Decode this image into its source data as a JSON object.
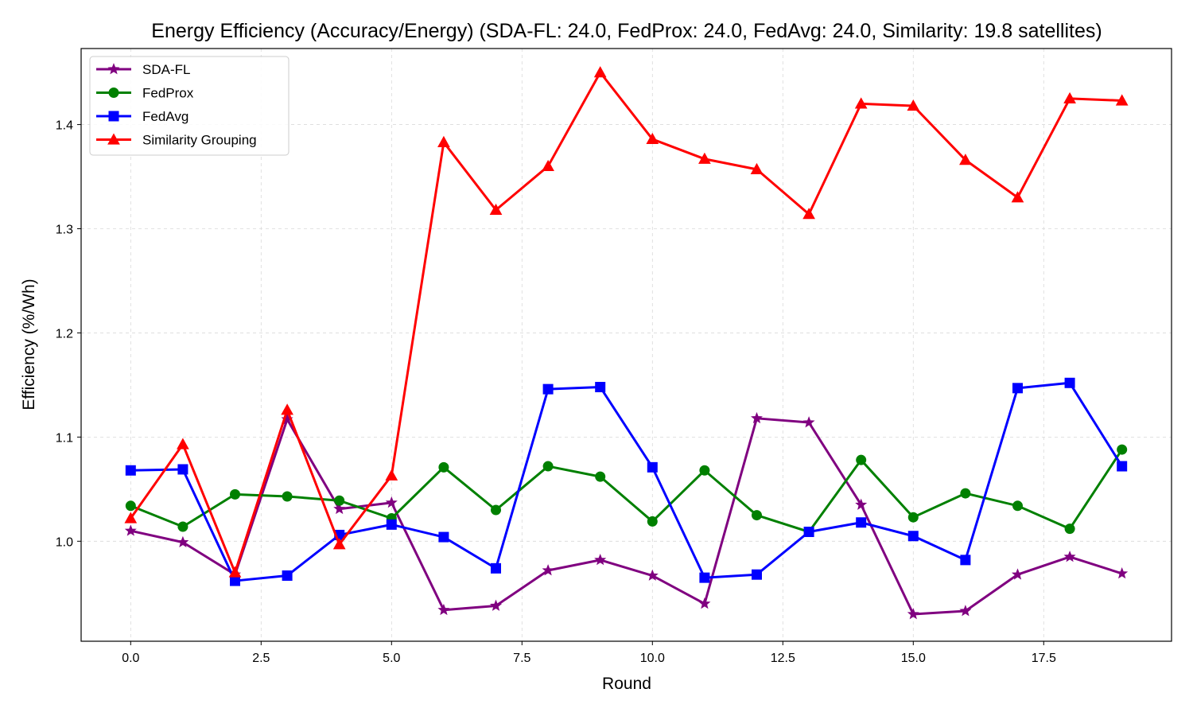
{
  "chart_data": {
    "type": "line",
    "title": "Energy Efficiency (Accuracy/Energy) (SDA-FL: 24.0, FedProx: 24.0, FedAvg: 24.0, Similarity: 19.8 satellites)",
    "xlabel": "Round",
    "ylabel": "Efficiency (%/Wh)",
    "xlim": [
      -0.95,
      19.95
    ],
    "ylim": [
      0.904,
      1.473
    ],
    "x_ticks": [
      0.0,
      2.5,
      5.0,
      7.5,
      10.0,
      12.5,
      15.0,
      17.5
    ],
    "x_tick_labels": [
      "0.0",
      "2.5",
      "5.0",
      "7.5",
      "10.0",
      "12.5",
      "15.0",
      "17.5"
    ],
    "y_ticks": [
      1.0,
      1.1,
      1.2,
      1.3,
      1.4
    ],
    "y_tick_labels": [
      "1.0",
      "1.1",
      "1.2",
      "1.3",
      "1.4"
    ],
    "grid": true,
    "legend_position": "top-left",
    "x": [
      0,
      1,
      2,
      3,
      4,
      5,
      6,
      7,
      8,
      9,
      10,
      11,
      12,
      13,
      14,
      15,
      16,
      17,
      18,
      19
    ],
    "series": [
      {
        "name": "SDA-FL",
        "color": "#800080",
        "marker": "star",
        "values": [
          1.01,
          0.999,
          0.968,
          1.117,
          1.031,
          1.037,
          0.934,
          0.938,
          0.972,
          0.982,
          0.967,
          0.94,
          1.118,
          1.114,
          1.035,
          0.93,
          0.933,
          0.968,
          0.985,
          0.969
        ]
      },
      {
        "name": "FedProx",
        "color": "#008000",
        "marker": "circle",
        "values": [
          1.034,
          1.014,
          1.045,
          1.043,
          1.039,
          1.022,
          1.071,
          1.03,
          1.072,
          1.062,
          1.019,
          1.068,
          1.025,
          1.009,
          1.078,
          1.023,
          1.046,
          1.034,
          1.012,
          1.088
        ]
      },
      {
        "name": "FedAvg",
        "color": "#0000ff",
        "marker": "square",
        "values": [
          1.068,
          1.069,
          0.962,
          0.967,
          1.006,
          1.016,
          1.004,
          0.974,
          1.146,
          1.148,
          1.071,
          0.965,
          0.968,
          1.009,
          1.018,
          1.005,
          0.982,
          1.147,
          1.152,
          1.072
        ]
      },
      {
        "name": "Similarity Grouping",
        "color": "#ff0000",
        "marker": "triangle",
        "values": [
          1.022,
          1.093,
          0.97,
          1.126,
          0.997,
          1.063,
          1.383,
          1.318,
          1.36,
          1.45,
          1.386,
          1.367,
          1.357,
          1.314,
          1.42,
          1.418,
          1.366,
          1.33,
          1.425,
          1.423
        ]
      }
    ]
  }
}
